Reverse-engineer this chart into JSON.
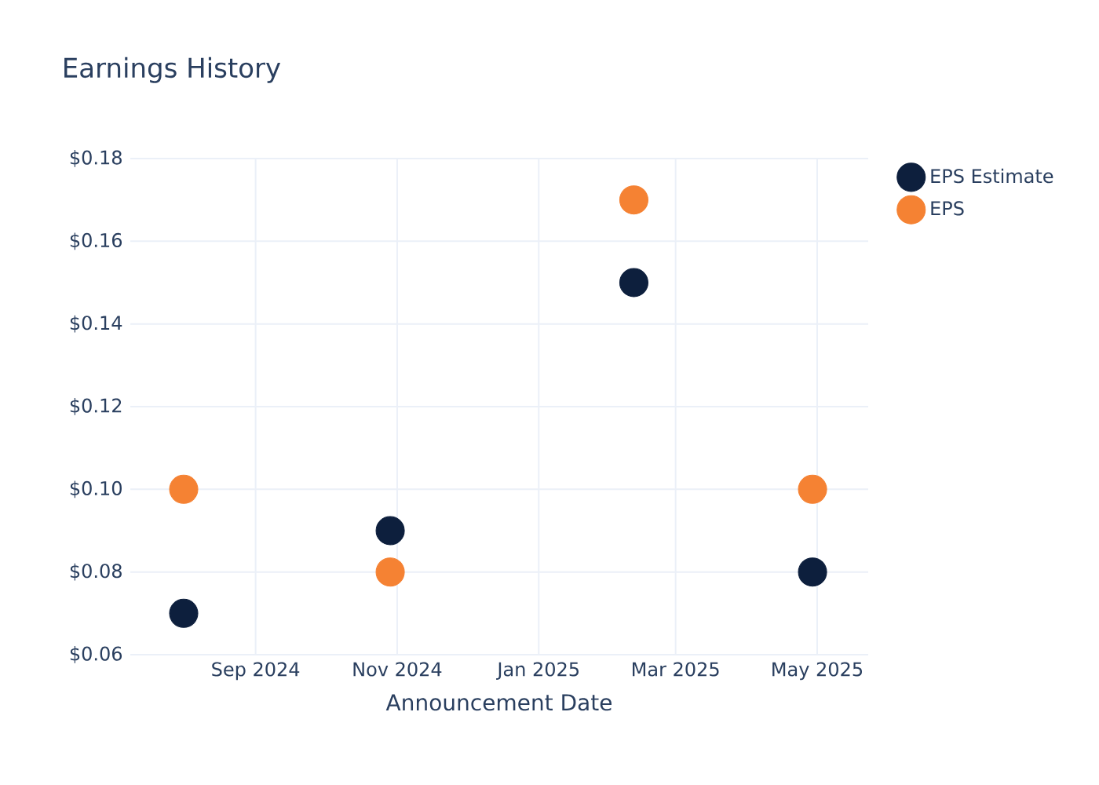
{
  "chart_data": {
    "type": "scatter",
    "title": "Earnings History",
    "xlabel": "Announcement Date",
    "x": [
      "2024-08-01",
      "2024-10-29",
      "2025-02-11",
      "2025-04-29"
    ],
    "series": [
      {
        "name": "EPS Estimate",
        "color": "#0d1f3d",
        "values": [
          0.07,
          0.09,
          0.15,
          0.08
        ]
      },
      {
        "name": "EPS",
        "color": "#f58233",
        "values": [
          0.1,
          0.08,
          0.17,
          0.1
        ]
      }
    ],
    "xlim": [
      "2024-07-09",
      "2025-05-23"
    ],
    "xticks": [
      {
        "value": "2024-09-01",
        "label": "Sep 2024"
      },
      {
        "value": "2024-11-01",
        "label": "Nov 2024"
      },
      {
        "value": "2025-01-01",
        "label": "Jan 2025"
      },
      {
        "value": "2025-03-01",
        "label": "Mar 2025"
      },
      {
        "value": "2025-05-01",
        "label": "May 2025"
      }
    ],
    "ylim": [
      0.06,
      0.18
    ],
    "yticks": [
      {
        "value": 0.06,
        "label": "$0.06"
      },
      {
        "value": 0.08,
        "label": "$0.08"
      },
      {
        "value": 0.1,
        "label": "$0.10"
      },
      {
        "value": 0.12,
        "label": "$0.12"
      },
      {
        "value": 0.14,
        "label": "$0.14"
      },
      {
        "value": 0.16,
        "label": "$0.16"
      },
      {
        "value": 0.18,
        "label": "$0.18"
      }
    ],
    "grid": true,
    "legend": "top right"
  }
}
